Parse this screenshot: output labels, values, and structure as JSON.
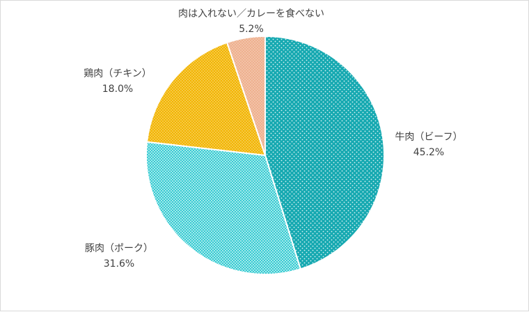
{
  "chart_data": {
    "type": "pie",
    "title": "",
    "categories": [
      "牛肉（ビーフ）",
      "豚肉（ポーク）",
      "鶏肉（チキン）",
      "肉は入れない／カレーを食べない"
    ],
    "values": [
      45.2,
      31.6,
      18.0,
      5.2
    ],
    "value_labels": [
      "45.2%",
      "31.6%",
      "18.0%",
      "5.2%"
    ],
    "colors": [
      "#1ab0b8",
      "#3fd0d6",
      "#f5b800",
      "#f0b090"
    ],
    "start_angle_deg": 0,
    "direction": "clockwise",
    "legend": "none"
  }
}
